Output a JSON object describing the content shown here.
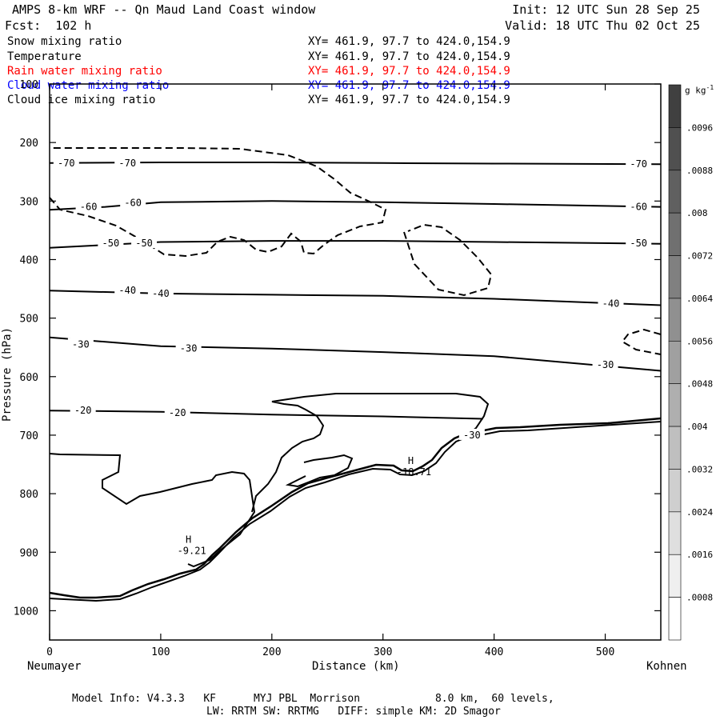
{
  "header": {
    "title": "AMPS 8-km WRF -- Qn Maud Land Coast window",
    "init": "Init: 12 UTC Sun 28 Sep 25",
    "forecast": "Fcst:  102 h",
    "valid": "Valid: 18 UTC Thu 02 Oct 25"
  },
  "fields": [
    {
      "name": "Snow mixing ratio",
      "xy": "XY= 461.9, 97.7 to 424.0,154.9",
      "color": "#000000"
    },
    {
      "name": "Temperature",
      "xy": "XY= 461.9, 97.7 to 424.0,154.9",
      "color": "#000000"
    },
    {
      "name": "Rain water mixing ratio",
      "xy": "XY= 461.9, 97.7 to 424.0,154.9",
      "color": "#ff0000"
    },
    {
      "name": "Cloud water mixing ratio",
      "xy": "XY= 461.9, 97.7 to 424.0,154.9",
      "color": "#0000ff"
    },
    {
      "name": "Cloud ice mixing ratio",
      "xy": "XY= 461.9, 97.7 to 424.0,154.9",
      "color": "#000000"
    }
  ],
  "footer": {
    "model_info": "Model Info: V4.3.3   KF      MYJ PBL  Morrison            8.0 km,  60 levels,",
    "physics": "LW: RRTM SW: RRTMG   DIFF: simple KM: 2D Smagor"
  },
  "chart_data": {
    "type": "contour",
    "title": "AMPS 8-km WRF -- Qn Maud Land Coast window",
    "xlabel": "Distance (km)",
    "ylabel": "Pressure (hPa)",
    "xlim": [
      0,
      550
    ],
    "ylim": [
      1050,
      100
    ],
    "xticks": [
      0,
      100,
      200,
      300,
      400,
      500
    ],
    "yticks": [
      100,
      200,
      300,
      400,
      500,
      600,
      700,
      800,
      900,
      1000
    ],
    "x_endpoints": {
      "left": "Neumayer",
      "right": "Kohnen"
    },
    "colorbar": {
      "unit": "g kg",
      "unit_exp": "-1",
      "ticks": [
        ".0096",
        ".0088",
        ".008",
        ".0072",
        ".0064",
        ".0056",
        ".0048",
        ".004",
        ".0032",
        ".0024",
        ".0016",
        ".0008"
      ]
    },
    "temperature_contours": [
      {
        "level": -70,
        "labels": [
          {
            "x": 15,
            "p": 235,
            "text": "-70"
          },
          {
            "x": 70,
            "p": 235,
            "text": "-70"
          },
          {
            "x": 530,
            "p": 237,
            "text": "-70"
          }
        ],
        "points": [
          [
            0,
            235
          ],
          [
            100,
            234
          ],
          [
            200,
            234
          ],
          [
            300,
            235
          ],
          [
            400,
            236
          ],
          [
            550,
            237
          ]
        ]
      },
      {
        "level": -60,
        "labels": [
          {
            "x": 35,
            "p": 310,
            "text": "-60"
          },
          {
            "x": 75,
            "p": 303,
            "text": "-60"
          },
          {
            "x": 530,
            "p": 310,
            "text": "-60"
          }
        ],
        "points": [
          [
            0,
            315
          ],
          [
            50,
            310
          ],
          [
            100,
            302
          ],
          [
            200,
            300
          ],
          [
            300,
            302
          ],
          [
            400,
            305
          ],
          [
            550,
            310
          ]
        ]
      },
      {
        "level": -50,
        "labels": [
          {
            "x": 55,
            "p": 372,
            "text": "-50"
          },
          {
            "x": 85,
            "p": 372,
            "text": "-50"
          },
          {
            "x": 530,
            "p": 372,
            "text": "-50"
          }
        ],
        "points": [
          [
            0,
            380
          ],
          [
            100,
            370
          ],
          [
            200,
            368
          ],
          [
            300,
            368
          ],
          [
            400,
            370
          ],
          [
            550,
            373
          ]
        ]
      },
      {
        "level": -40,
        "labels": [
          {
            "x": 70,
            "p": 453,
            "text": "-40"
          },
          {
            "x": 100,
            "p": 458,
            "text": "-40"
          },
          {
            "x": 505,
            "p": 475,
            "text": "-40"
          }
        ],
        "points": [
          [
            0,
            453
          ],
          [
            100,
            458
          ],
          [
            200,
            460
          ],
          [
            300,
            462
          ],
          [
            400,
            467
          ],
          [
            550,
            478
          ]
        ]
      },
      {
        "level": -30,
        "labels": [
          {
            "x": 28,
            "p": 545,
            "text": "-30"
          },
          {
            "x": 125,
            "p": 552,
            "text": "-30"
          },
          {
            "x": 500,
            "p": 580,
            "text": "-30"
          },
          {
            "x": 380,
            "p": 700,
            "text": "-30"
          }
        ],
        "points": [
          [
            0,
            533
          ],
          [
            100,
            548
          ],
          [
            200,
            552
          ],
          [
            300,
            558
          ],
          [
            400,
            565
          ],
          [
            550,
            590
          ]
        ]
      },
      {
        "level": -20,
        "labels": [
          {
            "x": 30,
            "p": 658,
            "text": "-20"
          },
          {
            "x": 115,
            "p": 662,
            "text": "-20"
          }
        ],
        "points": [
          [
            0,
            658
          ],
          [
            100,
            660
          ],
          [
            200,
            665
          ],
          [
            300,
            668
          ],
          [
            390,
            672
          ]
        ]
      }
    ],
    "highs": [
      {
        "label": "H",
        "value": "-9.21",
        "x": 125,
        "p": 895
      },
      {
        "label": "H",
        "value": "-18.71",
        "x": 325,
        "p": 760
      }
    ]
  }
}
